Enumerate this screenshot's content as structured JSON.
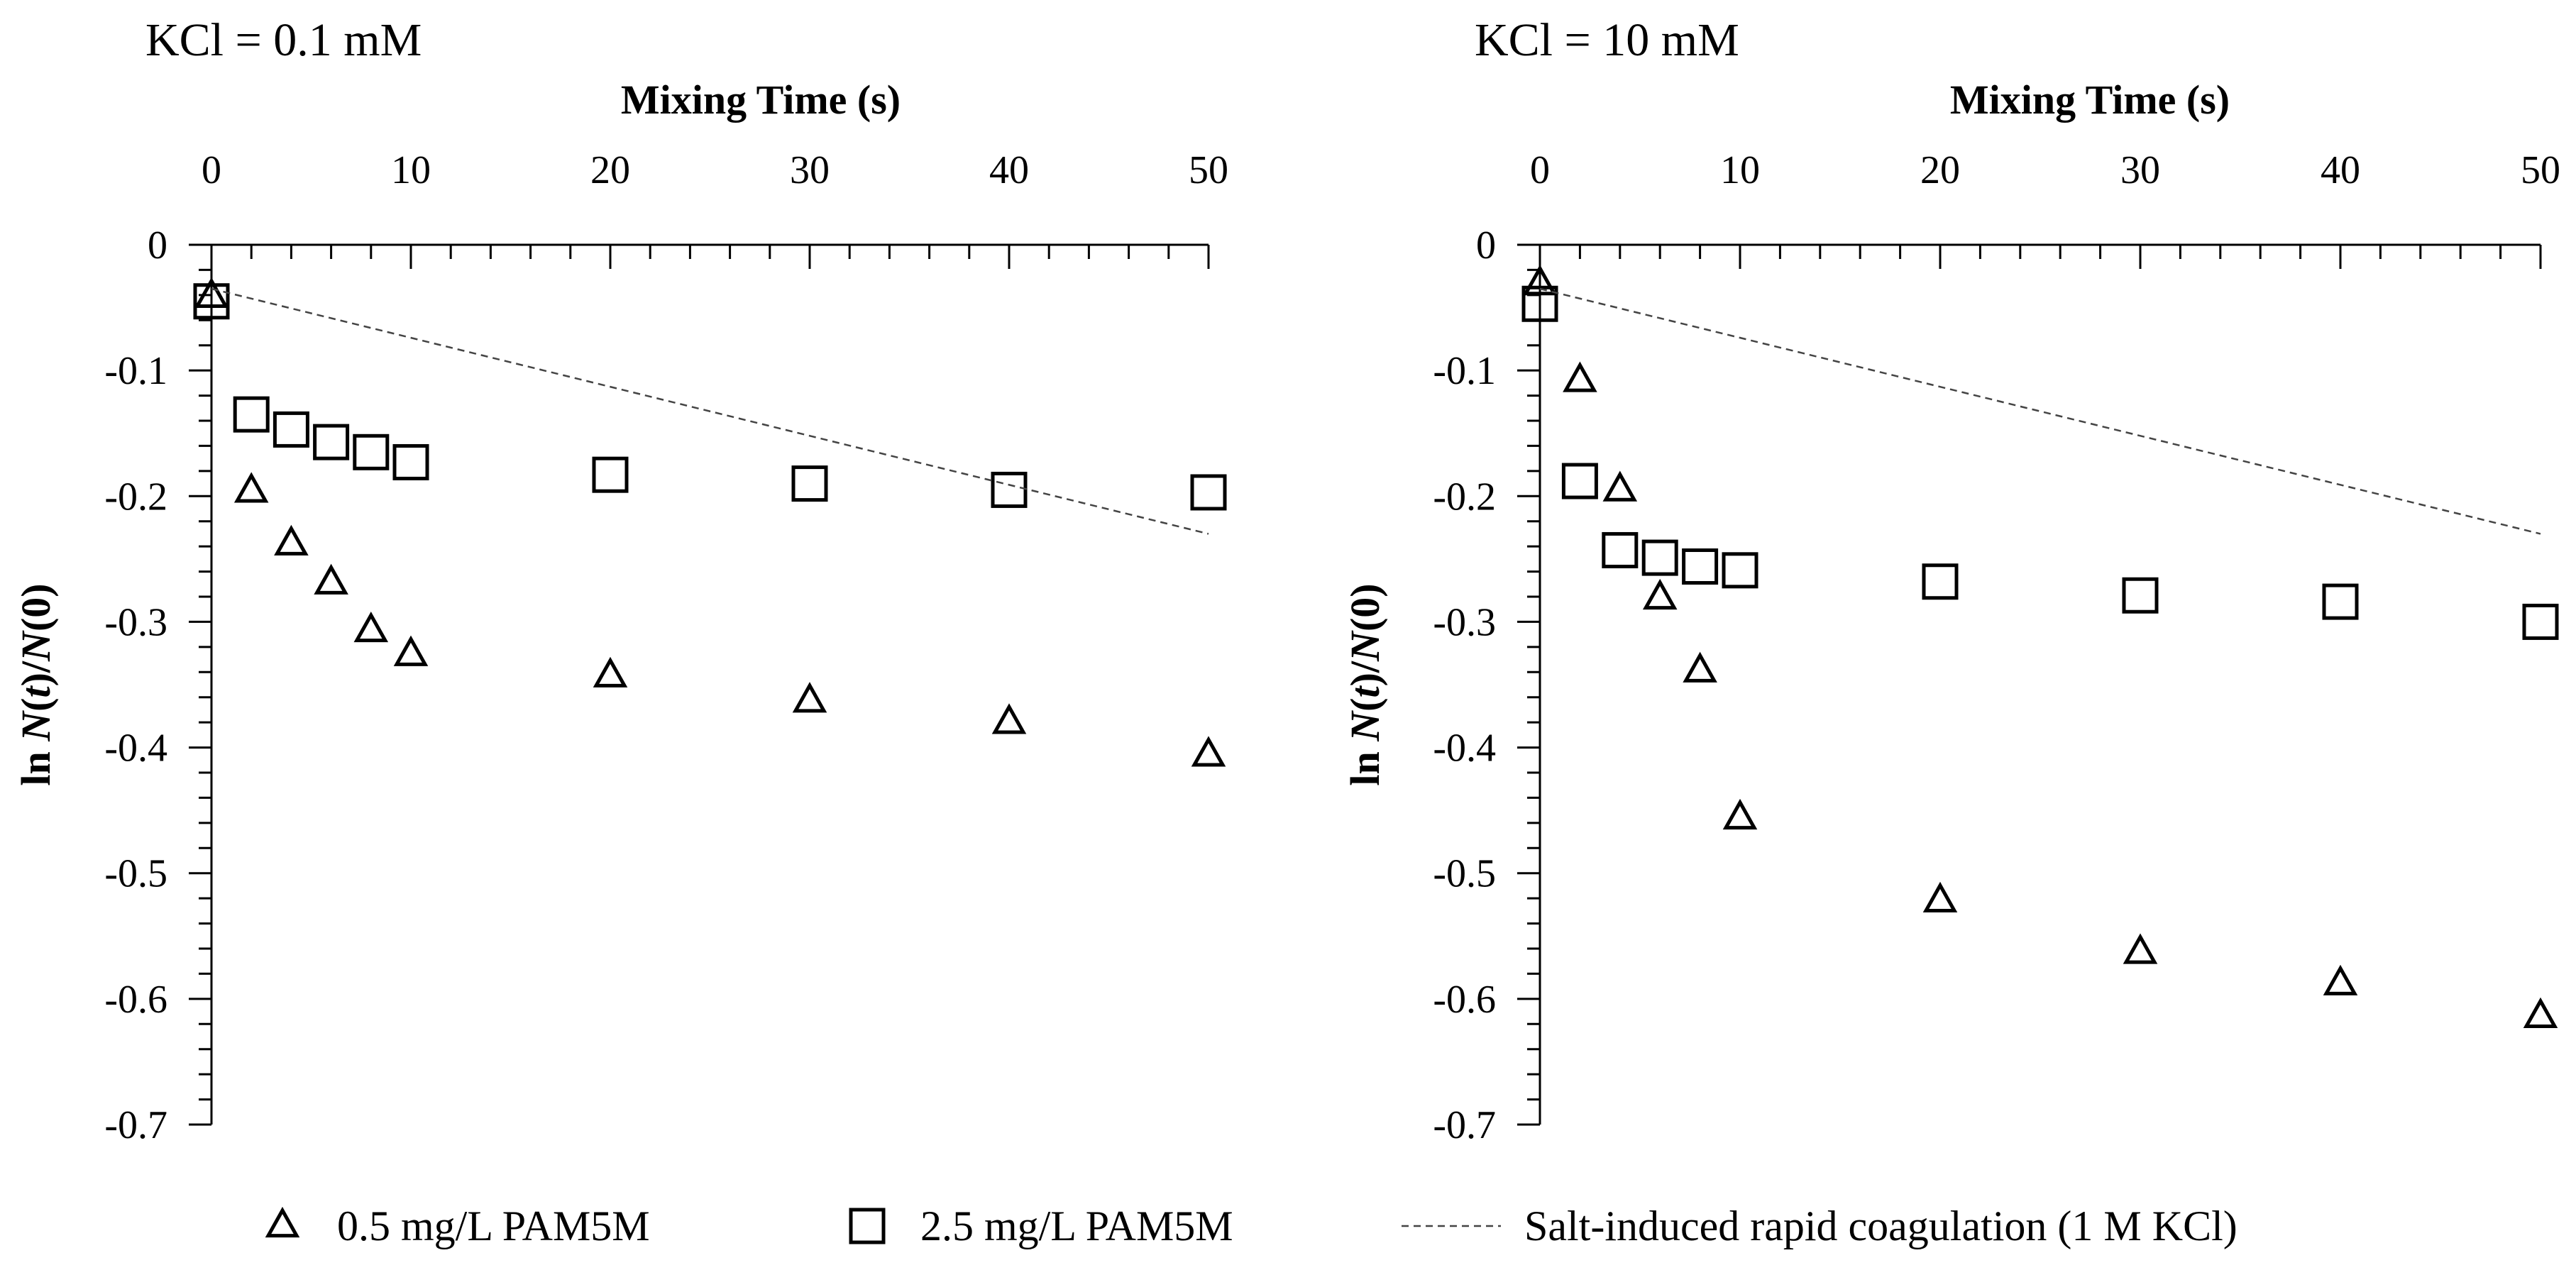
{
  "chart_data": [
    {
      "type": "scatter",
      "title": "KCl = 0.1 mM",
      "xlabel": "Mixing Time (s)",
      "ylabel": "ln N(t)/N(0)",
      "xlim": [
        0,
        50
      ],
      "ylim": [
        -0.7,
        0
      ],
      "xticks": [
        "0",
        "10",
        "20",
        "30",
        "40",
        "50"
      ],
      "yticks": [
        "0",
        "-0.1",
        "-0.2",
        "-0.3",
        "-0.4",
        "-0.5",
        "-0.6",
        "-0.7"
      ],
      "series": [
        {
          "name": "0.5 mg/L PAM5M",
          "marker": "triangle",
          "x": [
            0,
            2,
            4,
            6,
            8,
            10,
            20,
            30,
            40,
            50
          ],
          "y": [
            -0.04,
            -0.195,
            -0.237,
            -0.268,
            -0.306,
            -0.325,
            -0.342,
            -0.362,
            -0.379,
            -0.405
          ]
        },
        {
          "name": "2.5 mg/L PAM5M",
          "marker": "square",
          "x": [
            0,
            2,
            4,
            6,
            8,
            10,
            20,
            30,
            40,
            50
          ],
          "y": [
            -0.045,
            -0.135,
            -0.147,
            -0.157,
            -0.165,
            -0.173,
            -0.183,
            -0.19,
            -0.195,
            -0.197
          ]
        },
        {
          "name": "Salt-induced rapid coagulation (1 M KCl)",
          "marker": "dashed-line",
          "x": [
            0,
            50
          ],
          "y": [
            -0.035,
            -0.23
          ]
        }
      ]
    },
    {
      "type": "scatter",
      "title": "KCl = 10 mM",
      "xlabel": "Mixing Time (s)",
      "ylabel": "ln N(t)/N(0)",
      "xlim": [
        0,
        50
      ],
      "ylim": [
        -0.7,
        0
      ],
      "xticks": [
        "0",
        "10",
        "20",
        "30",
        "40",
        "50"
      ],
      "yticks": [
        "0",
        "-0.1",
        "-0.2",
        "-0.3",
        "-0.4",
        "-0.5",
        "-0.6",
        "-0.7"
      ],
      "series": [
        {
          "name": "0.5 mg/L PAM5M",
          "marker": "triangle",
          "x": [
            0,
            2,
            4,
            6,
            8,
            10,
            20,
            30,
            40,
            50
          ],
          "y": [
            -0.03,
            -0.107,
            -0.194,
            -0.28,
            -0.338,
            -0.455,
            -0.521,
            -0.562,
            -0.587,
            -0.613
          ]
        },
        {
          "name": "2.5 mg/L PAM5M",
          "marker": "square",
          "x": [
            0,
            2,
            4,
            6,
            8,
            10,
            20,
            30,
            40,
            50
          ],
          "y": [
            -0.047,
            -0.188,
            -0.243,
            -0.249,
            -0.256,
            -0.259,
            -0.268,
            -0.279,
            -0.284,
            -0.3
          ]
        },
        {
          "name": "Salt-induced rapid coagulation (1 M KCl)",
          "marker": "dashed-line",
          "x": [
            0,
            50
          ],
          "y": [
            -0.035,
            -0.23
          ]
        }
      ]
    }
  ],
  "legend": [
    {
      "marker": "triangle",
      "label": "0.5 mg/L PAM5M"
    },
    {
      "marker": "square",
      "label": "2.5 mg/L PAM5M"
    },
    {
      "marker": "dashed-line",
      "label": "Salt-induced rapid coagulation (1 M KCl)"
    }
  ]
}
